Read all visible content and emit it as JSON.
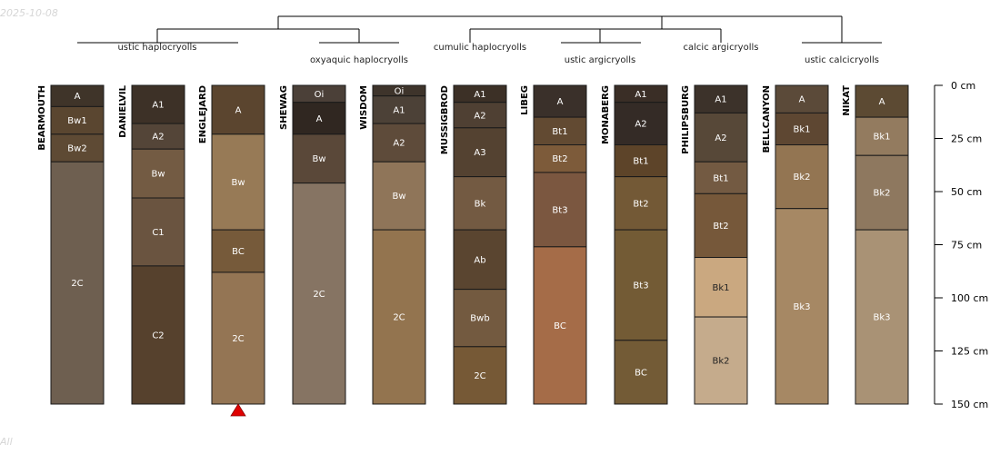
{
  "watermark": {
    "date": "2025-10-08",
    "corner": "All"
  },
  "dendrogram": {
    "taxa_labels": [
      "ustic haplocryolls",
      "oxyaquic haplocryolls",
      "cumulic haplocryolls",
      "ustic argicryolls",
      "calcic argicryolls",
      "ustic calcicryolls"
    ]
  },
  "depth_axis": {
    "unit": "cm",
    "range": [
      0,
      150
    ],
    "ticks": [
      {
        "value": 0,
        "label": "0 cm"
      },
      {
        "value": 25,
        "label": "25 cm"
      },
      {
        "value": 50,
        "label": "50 cm"
      },
      {
        "value": 75,
        "label": "75 cm"
      },
      {
        "value": 100,
        "label": "100 cm"
      },
      {
        "value": 125,
        "label": "125 cm"
      },
      {
        "value": 150,
        "label": "150 cm"
      }
    ]
  },
  "profiles": [
    {
      "name": "BEARMOUTH",
      "horizons": [
        {
          "name": "A",
          "top": 0,
          "bottom": 10,
          "color": "#3f3429"
        },
        {
          "name": "Bw1",
          "top": 10,
          "bottom": 23,
          "color": "#5a4630"
        },
        {
          "name": "Bw2",
          "top": 23,
          "bottom": 36,
          "color": "#5e4a34"
        },
        {
          "name": "2C",
          "top": 36,
          "bottom": 150,
          "color": "#6e5f50"
        }
      ]
    },
    {
      "name": "DANIELVIL",
      "horizons": [
        {
          "name": "A1",
          "top": 0,
          "bottom": 18,
          "color": "#3d3127"
        },
        {
          "name": "A2",
          "top": 18,
          "bottom": 30,
          "color": "#544538"
        },
        {
          "name": "Bw",
          "top": 30,
          "bottom": 53,
          "color": "#735b43"
        },
        {
          "name": "C1",
          "top": 53,
          "bottom": 85,
          "color": "#6a5440"
        },
        {
          "name": "C2",
          "top": 85,
          "bottom": 150,
          "color": "#56412d"
        }
      ]
    },
    {
      "name": "ENGLEJARD",
      "horizons": [
        {
          "name": "A",
          "top": 0,
          "bottom": 23,
          "color": "#5b452f"
        },
        {
          "name": "Bw",
          "top": 23,
          "bottom": 68,
          "color": "#977a56"
        },
        {
          "name": "BC",
          "top": 68,
          "bottom": 88,
          "color": "#765a3a"
        },
        {
          "name": "2C",
          "top": 88,
          "bottom": 150,
          "color": "#947554"
        }
      ]
    },
    {
      "name": "SHEWAG",
      "horizons": [
        {
          "name": "Oi",
          "top": 0,
          "bottom": 8,
          "color": "#4b4038"
        },
        {
          "name": "A",
          "top": 8,
          "bottom": 23,
          "color": "#302721"
        },
        {
          "name": "Bw",
          "top": 23,
          "bottom": 46,
          "color": "#5a4839"
        },
        {
          "name": "2C",
          "top": 46,
          "bottom": 150,
          "color": "#867463"
        }
      ]
    },
    {
      "name": "WISDOM",
      "horizons": [
        {
          "name": "Oi",
          "top": 0,
          "bottom": 5,
          "color": "#3e342b"
        },
        {
          "name": "A1",
          "top": 5,
          "bottom": 18,
          "color": "#4c4137"
        },
        {
          "name": "A2",
          "top": 18,
          "bottom": 36,
          "color": "#5e4b3a"
        },
        {
          "name": "Bw",
          "top": 36,
          "bottom": 68,
          "color": "#8f7559"
        },
        {
          "name": "2C",
          "top": 68,
          "bottom": 150,
          "color": "#93744f"
        }
      ]
    },
    {
      "name": "MUSSIGBROD",
      "horizons": [
        {
          "name": "A1",
          "top": 0,
          "bottom": 8,
          "color": "#3c3026"
        },
        {
          "name": "A2",
          "top": 8,
          "bottom": 20,
          "color": "#4f4033"
        },
        {
          "name": "A3",
          "top": 20,
          "bottom": 43,
          "color": "#544231"
        },
        {
          "name": "Bk",
          "top": 43,
          "bottom": 68,
          "color": "#735a42"
        },
        {
          "name": "Ab",
          "top": 68,
          "bottom": 96,
          "color": "#5a4530"
        },
        {
          "name": "Bwb",
          "top": 96,
          "bottom": 123,
          "color": "#735a40"
        },
        {
          "name": "2C",
          "top": 123,
          "bottom": 150,
          "color": "#765936"
        }
      ]
    },
    {
      "name": "LIBEG",
      "horizons": [
        {
          "name": "A",
          "top": 0,
          "bottom": 15,
          "color": "#3a302a"
        },
        {
          "name": "Bt1",
          "top": 15,
          "bottom": 28,
          "color": "#624a32"
        },
        {
          "name": "Bt2",
          "top": 28,
          "bottom": 41,
          "color": "#7d5b3a"
        },
        {
          "name": "Bt3",
          "top": 41,
          "bottom": 76,
          "color": "#7b5740"
        },
        {
          "name": "BC",
          "top": 76,
          "bottom": 150,
          "color": "#a56c48"
        }
      ]
    },
    {
      "name": "MONABERG",
      "horizons": [
        {
          "name": "A1",
          "top": 0,
          "bottom": 8,
          "color": "#3a2e26"
        },
        {
          "name": "A2",
          "top": 8,
          "bottom": 28,
          "color": "#342b26"
        },
        {
          "name": "Bt1",
          "top": 28,
          "bottom": 43,
          "color": "#5d4429"
        },
        {
          "name": "Bt2",
          "top": 43,
          "bottom": 68,
          "color": "#735936"
        },
        {
          "name": "Bt3",
          "top": 68,
          "bottom": 120,
          "color": "#735b35"
        },
        {
          "name": "BC",
          "top": 120,
          "bottom": 150,
          "color": "#735b36"
        }
      ]
    },
    {
      "name": "PHILIPSBURG",
      "horizons": [
        {
          "name": "A1",
          "top": 0,
          "bottom": 13,
          "color": "#3c322a"
        },
        {
          "name": "A2",
          "top": 13,
          "bottom": 36,
          "color": "#574838"
        },
        {
          "name": "Bt1",
          "top": 36,
          "bottom": 51,
          "color": "#735a42"
        },
        {
          "name": "Bt2",
          "top": 51,
          "bottom": 81,
          "color": "#76583a"
        },
        {
          "name": "Bk1",
          "top": 81,
          "bottom": 109,
          "color": "#caa880"
        },
        {
          "name": "Bk2",
          "top": 109,
          "bottom": 150,
          "color": "#c5ab8c"
        }
      ]
    },
    {
      "name": "BELLCANYON",
      "horizons": [
        {
          "name": "A",
          "top": 0,
          "bottom": 13,
          "color": "#5b4a39"
        },
        {
          "name": "Bk1",
          "top": 13,
          "bottom": 28,
          "color": "#5e4732"
        },
        {
          "name": "Bk2",
          "top": 28,
          "bottom": 58,
          "color": "#937552"
        },
        {
          "name": "Bk3",
          "top": 58,
          "bottom": 150,
          "color": "#a68864"
        }
      ]
    },
    {
      "name": "NIKAT",
      "horizons": [
        {
          "name": "A",
          "top": 0,
          "bottom": 15,
          "color": "#5c4a33"
        },
        {
          "name": "Bk1",
          "top": 15,
          "bottom": 33,
          "color": "#937b5f"
        },
        {
          "name": "Bk2",
          "top": 33,
          "bottom": 68,
          "color": "#8e785f"
        },
        {
          "name": "Bk3",
          "top": 68,
          "bottom": 150,
          "color": "#a99275"
        }
      ]
    }
  ],
  "marker": {
    "profile_index": 2,
    "color": "#e00000"
  }
}
